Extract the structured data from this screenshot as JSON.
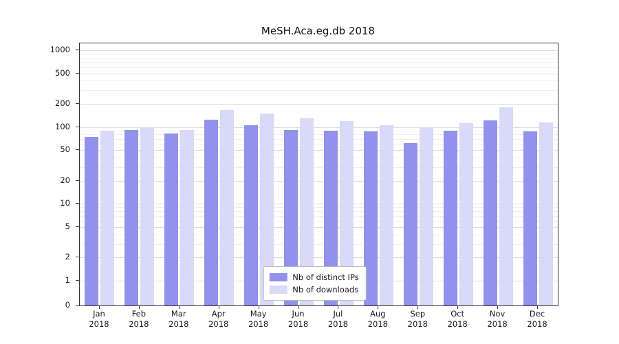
{
  "chart_data": {
    "type": "bar",
    "title": "MeSH.Aca.eg.db 2018",
    "categories": [
      "Jan 2018",
      "Feb 2018",
      "Mar 2018",
      "Apr 2018",
      "May 2018",
      "Jun 2018",
      "Jul 2018",
      "Aug 2018",
      "Sep 2018",
      "Oct 2018",
      "Nov 2018",
      "Dec 2018"
    ],
    "series": [
      {
        "name": "Nb of distinct IPs",
        "color": "#9292ec",
        "values": [
          75,
          92,
          82,
          125,
          105,
          92,
          90,
          88,
          62,
          90,
          122,
          88
        ]
      },
      {
        "name": "Nb of downloads",
        "color": "#d9d9f8",
        "values": [
          90,
          100,
          92,
          165,
          150,
          130,
          120,
          105,
          100,
          112,
          180,
          115
        ]
      }
    ],
    "yticks": [
      0,
      1,
      2,
      5,
      10,
      20,
      50,
      100,
      200,
      500,
      1000
    ],
    "yscale": "symlog",
    "ylim": [
      0,
      1000
    ],
    "grid": true,
    "legend_position": "bottom-center"
  }
}
